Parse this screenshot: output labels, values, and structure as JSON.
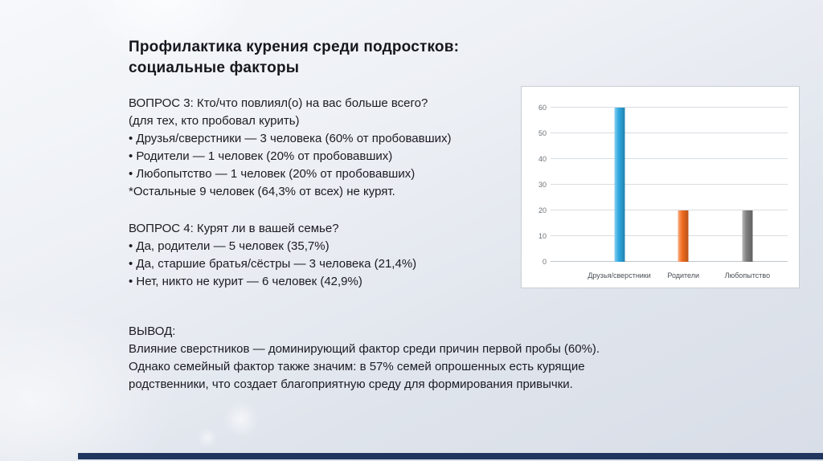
{
  "title": {
    "line1": "Профилактика курения среди подростков:",
    "line2": "социальные факторы"
  },
  "question3": {
    "heading": "ВОПРОС 3: Кто/что повлиял(о) на вас больше всего?",
    "subheading": "(для тех, кто пробовал курить)",
    "bullets": [
      "• Друзья/сверстники — 3 человека (60% от пробовавших)",
      "• Родители — 1 человек (20% от пробовавших)",
      "• Любопытство — 1 человек (20% от пробовавших)"
    ],
    "note": "*Остальные 9 человек (64,3% от всех) не курят."
  },
  "question4": {
    "heading": "ВОПРОС 4: Курят ли в вашей семье?",
    "bullets": [
      "• Да, родители — 5 человек (35,7%)",
      "• Да, старшие братья/сёстры — 3 человека (21,4%)",
      "• Нет, никто не курит — 6 человек (42,9%)"
    ]
  },
  "conclusion": {
    "heading": "ВЫВОД:",
    "lines": [
      "Влияние сверстников — доминирующий фактор среди причин первой пробы (60%).",
      "Однако семейный фактор также значим: в 57% семей опрошенных есть курящие",
      "родственники, что создает благоприятную среду для формирования привычки."
    ]
  },
  "chart_data": {
    "type": "bar",
    "title": "",
    "categories": [
      "Друзья/сверстники",
      "Родители",
      "Любопытство"
    ],
    "values": [
      60,
      20,
      20
    ],
    "colors": [
      "#2fa9e1",
      "#f06c1e",
      "#7f7f7f"
    ],
    "y_ticks": [
      0,
      10,
      20,
      30,
      40,
      50,
      60
    ],
    "ylim": [
      0,
      63
    ],
    "xlabel": "",
    "ylabel": "",
    "grid": true,
    "legend": "none"
  },
  "colors": {
    "accent_bar": "#20365f",
    "panel_border": "#c9cdd4",
    "text": "#1b1b22"
  }
}
